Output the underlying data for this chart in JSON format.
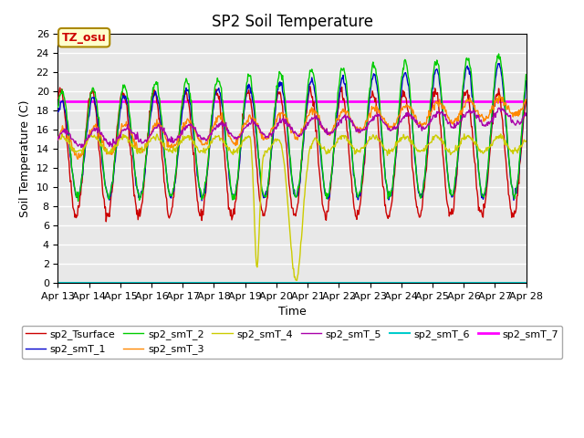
{
  "title": "SP2 Soil Temperature",
  "xlabel": "Time",
  "ylabel": "Soil Temperature (C)",
  "xlim": [
    0,
    360
  ],
  "ylim": [
    0,
    26
  ],
  "xtick_positions": [
    0,
    24,
    48,
    72,
    96,
    120,
    144,
    168,
    192,
    216,
    240,
    264,
    288,
    312,
    336,
    360
  ],
  "xtick_labels": [
    "Apr 13",
    "Apr 14",
    "Apr 15",
    "Apr 16",
    "Apr 17",
    "Apr 18",
    "Apr 19",
    "Apr 20",
    "Apr 21",
    "Apr 22",
    "Apr 23",
    "Apr 24",
    "Apr 25",
    "Apr 26",
    "Apr 27",
    "Apr 28"
  ],
  "ytick_positions": [
    0,
    2,
    4,
    6,
    8,
    10,
    12,
    14,
    16,
    18,
    20,
    22,
    24,
    26
  ],
  "annotation_text": "TZ_osu",
  "annotation_color": "#cc0000",
  "annotation_bg": "#ffffcc",
  "annotation_border": "#aa8800",
  "smT_7_value": 19.0,
  "smT_6_value": 0.0,
  "legend_entries": [
    "sp2_Tsurface",
    "sp2_smT_1",
    "sp2_smT_2",
    "sp2_smT_3",
    "sp2_smT_4",
    "sp2_smT_5",
    "sp2_smT_6",
    "sp2_smT_7"
  ],
  "line_colors": [
    "#cc0000",
    "#0000cc",
    "#00cc00",
    "#ff8800",
    "#cccc00",
    "#aa00aa",
    "#00cccc",
    "#ff00ff"
  ],
  "background_color": "#e8e8e8",
  "figure_bg": "#ffffff",
  "grid_color": "#ffffff",
  "title_fontsize": 12,
  "axis_fontsize": 9,
  "tick_fontsize": 8
}
